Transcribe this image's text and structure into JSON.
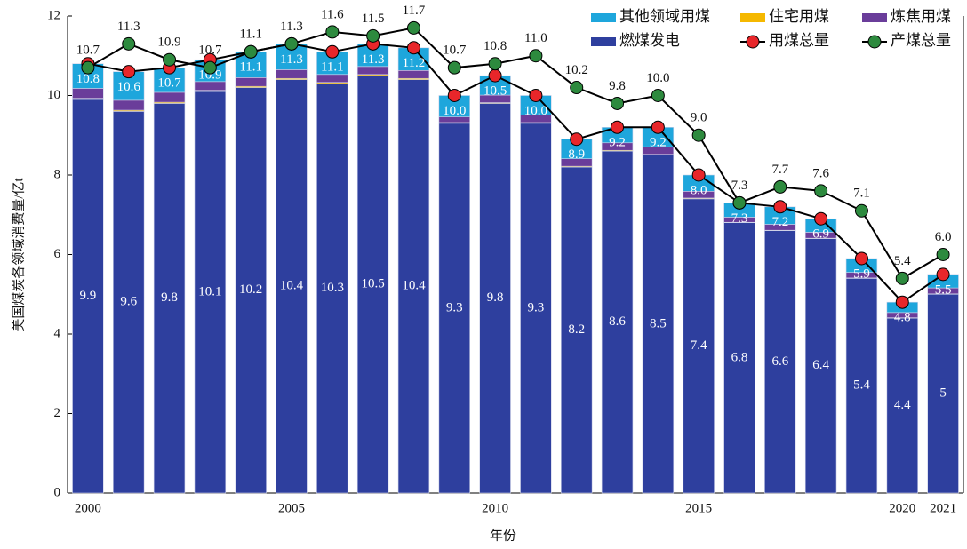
{
  "chart_data": {
    "type": "bar",
    "stacked": true,
    "xlabel": "年份",
    "ylabel": "美国煤炭各领域消费量/亿t",
    "categories": [
      "2000",
      null,
      null,
      null,
      null,
      "2005",
      null,
      null,
      null,
      null,
      "2010",
      null,
      null,
      null,
      null,
      "2015",
      null,
      null,
      null,
      null,
      "2020",
      "2021"
    ],
    "ylim": [
      0,
      12
    ],
    "yticks": [
      0,
      2,
      4,
      6,
      8,
      10,
      12
    ],
    "series": [
      {
        "name": "燃煤发电",
        "type": "bar",
        "color": "#2e3f9e",
        "labels": true,
        "values": [
          9.9,
          9.6,
          9.8,
          10.1,
          10.2,
          10.4,
          10.3,
          10.5,
          10.4,
          9.3,
          9.8,
          9.3,
          8.2,
          8.6,
          8.5,
          7.4,
          6.8,
          6.6,
          6.4,
          5.4,
          4.4,
          5.0
        ]
      },
      {
        "name": "住宅用煤",
        "type": "bar",
        "color": "#f5b800",
        "values": [
          0.03,
          0.03,
          0.03,
          0.03,
          0.03,
          0.03,
          0.03,
          0.03,
          0.03,
          0.02,
          0.02,
          0.02,
          0.02,
          0.02,
          0.02,
          0.02,
          0.01,
          0.01,
          0.01,
          0.01,
          0.01,
          0.01
        ]
      },
      {
        "name": "炼焦用煤",
        "type": "bar",
        "color": "#6a3d9a",
        "values": [
          0.25,
          0.25,
          0.25,
          0.22,
          0.22,
          0.22,
          0.2,
          0.2,
          0.2,
          0.14,
          0.19,
          0.19,
          0.19,
          0.19,
          0.19,
          0.17,
          0.13,
          0.15,
          0.15,
          0.14,
          0.13,
          0.15
        ]
      },
      {
        "name": "其他领域用煤",
        "type": "bar",
        "color": "#1ea6dc",
        "values": [
          0.62,
          0.72,
          0.62,
          0.55,
          0.65,
          0.65,
          0.57,
          0.57,
          0.57,
          0.54,
          0.49,
          0.49,
          0.49,
          0.39,
          0.49,
          0.41,
          0.36,
          0.44,
          0.34,
          0.35,
          0.26,
          0.34
        ]
      },
      {
        "name": "用煤总量",
        "type": "line",
        "color": "#e8262a",
        "label_pos": "below",
        "values": [
          10.8,
          10.6,
          10.7,
          10.9,
          11.1,
          11.3,
          11.1,
          11.3,
          11.2,
          10.0,
          10.5,
          10.0,
          8.9,
          9.2,
          9.2,
          8.0,
          7.3,
          7.2,
          6.9,
          5.9,
          4.8,
          5.5
        ],
        "value_labels": [
          "10.8",
          "10.6",
          "10.7",
          "10.9",
          "11.1",
          "11.3",
          "11.1",
          "11.3",
          "11.2",
          "10.0",
          "10.5",
          "10.0",
          "8.9",
          "9.2",
          "9.2",
          "8.0",
          "7.3",
          "7.2",
          "6.9",
          "5.9",
          "4.8",
          "5.5"
        ]
      },
      {
        "name": "产煤总量",
        "type": "line",
        "color": "#2d8a3e",
        "label_pos": "above",
        "values": [
          10.7,
          11.3,
          10.9,
          10.7,
          11.1,
          11.3,
          11.6,
          11.5,
          11.7,
          10.7,
          10.8,
          11.0,
          10.2,
          9.8,
          10.0,
          9.0,
          7.3,
          7.7,
          7.6,
          7.1,
          5.4,
          6.0
        ],
        "value_labels": [
          "10.7",
          "11.3",
          "10.9",
          "10.7",
          "11.1",
          "11.3",
          "11.6",
          "11.5",
          "11.7",
          "10.7",
          "10.8",
          "11.0",
          "10.2",
          "9.8",
          "10.0",
          "9.0",
          "7.3",
          "7.7",
          "7.6",
          "7.1",
          "5.4",
          "6.0"
        ]
      }
    ]
  }
}
